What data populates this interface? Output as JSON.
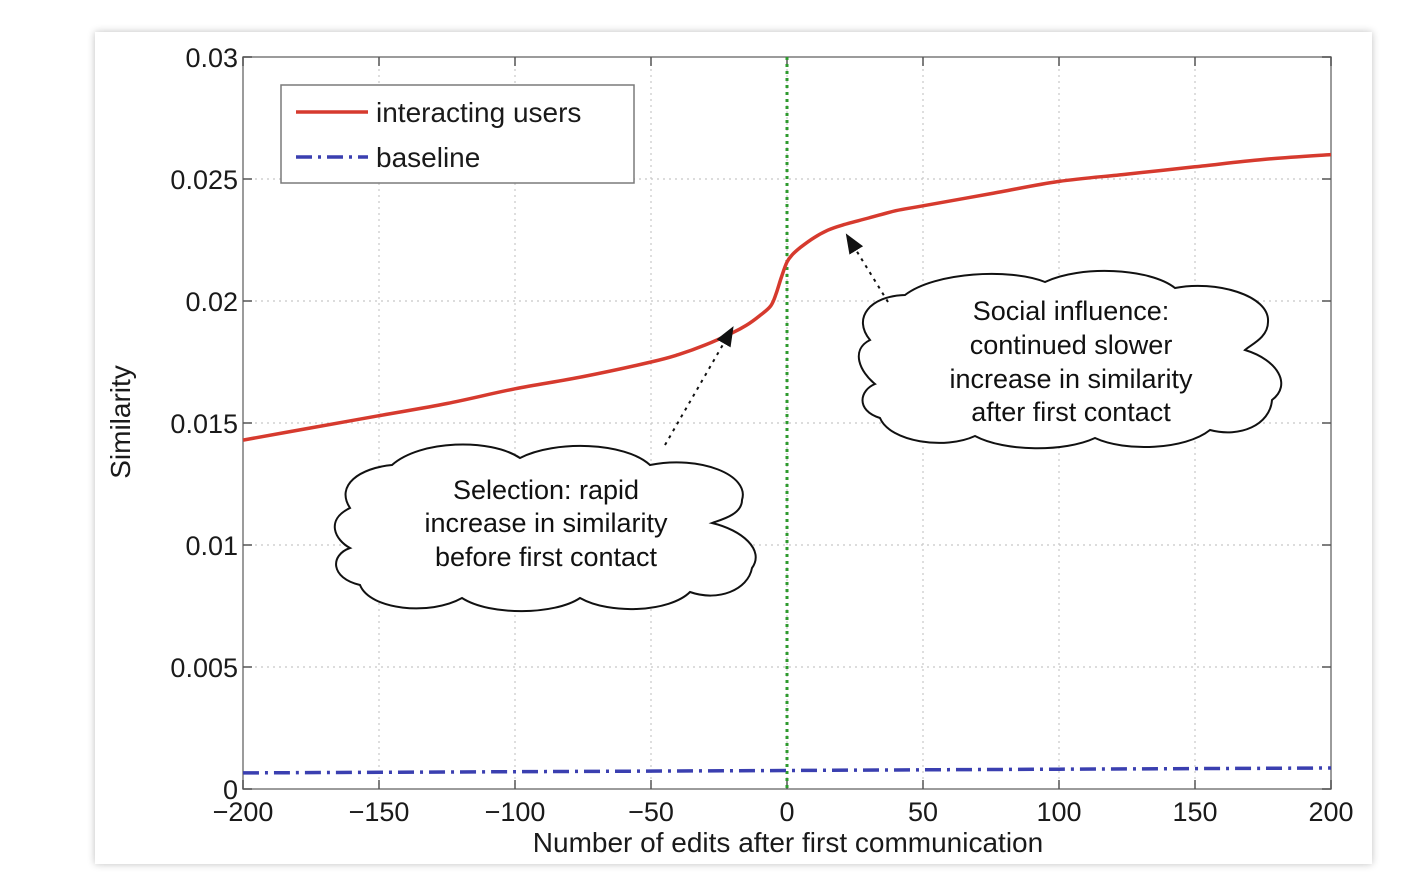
{
  "chart_data": {
    "type": "line",
    "xlabel": "Number of edits after first communication",
    "ylabel": "Similarity",
    "xlim": [
      -200,
      200
    ],
    "ylim": [
      0,
      0.03
    ],
    "xticks": [
      -200,
      -150,
      -100,
      -50,
      0,
      50,
      100,
      150,
      200
    ],
    "xtick_labels": [
      "−200",
      "−150",
      "−100",
      "−50",
      "0",
      "50",
      "100",
      "150",
      "200"
    ],
    "yticks": [
      0,
      0.005,
      0.01,
      0.015,
      0.02,
      0.025,
      0.03
    ],
    "ytick_labels": [
      "0",
      "0.005",
      "0.01",
      "0.015",
      "0.02",
      "0.025",
      "0.03"
    ],
    "grid": true,
    "legend_position": "top-left",
    "series": [
      {
        "name": "interacting users",
        "color": "#d63a2e",
        "style": "solid",
        "x": [
          -200,
          -175,
          -150,
          -125,
          -100,
          -75,
          -50,
          -40,
          -30,
          -20,
          -15,
          -10,
          -6,
          -4,
          -2,
          0,
          2,
          5,
          10,
          15,
          20,
          30,
          40,
          50,
          75,
          100,
          125,
          150,
          175,
          200
        ],
        "y": [
          0.0143,
          0.0148,
          0.0153,
          0.0158,
          0.0164,
          0.0169,
          0.0175,
          0.0178,
          0.0182,
          0.0187,
          0.019,
          0.0194,
          0.0198,
          0.0203,
          0.021,
          0.0216,
          0.0219,
          0.0222,
          0.0226,
          0.0229,
          0.0231,
          0.0234,
          0.0237,
          0.0239,
          0.0244,
          0.0249,
          0.0252,
          0.0255,
          0.0258,
          0.026
        ]
      },
      {
        "name": "baseline",
        "color": "#3a3fb0",
        "style": "dashdot",
        "x": [
          -200,
          -100,
          0,
          100,
          200
        ],
        "y": [
          0.00066,
          0.00071,
          0.00076,
          0.00081,
          0.00086
        ]
      }
    ],
    "reference_line": {
      "x": 0,
      "color": "#2e9a2e",
      "style": "dotted"
    },
    "annotations": [
      {
        "lines": [
          "Selection: rapid",
          "increase in similarity",
          "before first contact"
        ],
        "target": {
          "x": -20,
          "y": 0.0189
        }
      },
      {
        "lines": [
          "Social influence:",
          "continued slower",
          "increase in similarity",
          "after first contact"
        ],
        "target": {
          "x": 22,
          "y": 0.0227
        }
      }
    ]
  }
}
